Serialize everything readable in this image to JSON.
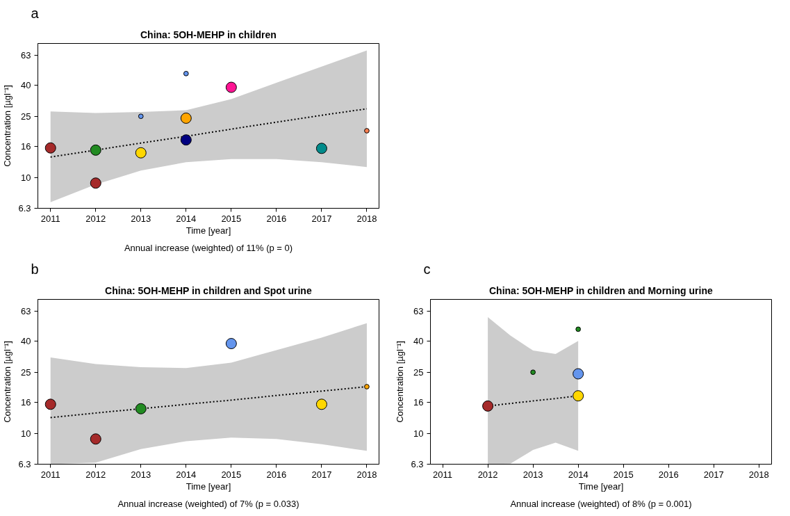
{
  "chart_data": [
    {
      "type": "bubble",
      "title": "China: 5OH-MEHP in children",
      "xlabel": "Time [year]",
      "ylabel": "Concentration [µgl⁻¹]",
      "annotations": [
        "a",
        "Annual increase (weighted) of 11% (p = 0)"
      ],
      "xlim": [
        2010.72,
        2018.27
      ],
      "xticks": [
        2011,
        2012,
        2013,
        2014,
        2015,
        2016,
        2017,
        2018
      ],
      "ylim": [
        6.3,
        75
      ],
      "yticks": [
        6.3,
        10,
        16,
        25,
        40,
        63
      ],
      "log": "y",
      "marker": "circle",
      "series": [
        {
          "x": [
            2011,
            2012,
            2012,
            2013,
            2013,
            2014,
            2014,
            2014,
            2015,
            2017,
            2018
          ],
          "values": [
            15.6,
            15.1,
            9.2,
            14.5,
            25.1,
            47.7,
            24.4,
            17.6,
            38.8,
            15.5,
            20.2
          ],
          "sizes": [
            1,
            1,
            1,
            1,
            0.2,
            0.2,
            1,
            1,
            1,
            1,
            0.2
          ],
          "colors": [
            "#a52a2a",
            "#228b22",
            "#a52a2a",
            "#ffd700",
            "#6495ed",
            "#6495ed",
            "#ffa500",
            "#000080",
            "#ff1493",
            "#008b8b",
            "#ff7f50"
          ]
        },
        {
          "type": "line",
          "x": [
            2011,
            2012,
            2013,
            2014,
            2015,
            2016,
            2017,
            2018
          ],
          "values": [
            13.6,
            15.1,
            16.8,
            18.6,
            20.7,
            23.0,
            25.5,
            28.1
          ],
          "lower": [
            6.9,
            9.0,
            11.1,
            12.6,
            13.2,
            13.2,
            12.6,
            11.7
          ],
          "upper": [
            27,
            26.4,
            26.8,
            27.5,
            32.5,
            41.6,
            53,
            67.5
          ],
          "color": "#000000",
          "line_style": "dotted",
          "marker": "none"
        }
      ]
    },
    {
      "type": "bubble",
      "title": "China: 5OH-MEHP in children and Spot urine",
      "xlabel": "Time [year]",
      "ylabel": "Concentration [µgl⁻¹]",
      "annotations": [
        "b",
        "Annual increase (weighted) of 7% (p = 0.033)"
      ],
      "xlim": [
        2010.72,
        2018.27
      ],
      "xticks": [
        2011,
        2012,
        2013,
        2014,
        2015,
        2016,
        2017,
        2018
      ],
      "ylim": [
        6.3,
        75
      ],
      "yticks": [
        6.3,
        10,
        16,
        25,
        40,
        63
      ],
      "log": "y",
      "marker": "circle",
      "series": [
        {
          "x": [
            2011,
            2012,
            2013,
            2015,
            2017,
            2018
          ],
          "values": [
            15.5,
            9.2,
            14.5,
            38.6,
            15.5,
            20.2
          ],
          "sizes": [
            1,
            1,
            1,
            1,
            1,
            0.2
          ],
          "colors": [
            "#a52a2a",
            "#a52a2a",
            "#228b22",
            "#6495ed",
            "#ffd700",
            "#ffa500"
          ]
        },
        {
          "type": "line",
          "x": [
            2011,
            2012,
            2013,
            2014,
            2015,
            2016,
            2017,
            2018
          ],
          "values": [
            12.7,
            13.6,
            14.5,
            15.5,
            16.5,
            17.7,
            18.9,
            20.2
          ],
          "lower": [
            6.3,
            6.45,
            7.9,
            8.9,
            9.4,
            9.2,
            8.5,
            7.7
          ],
          "upper": [
            31.3,
            28.4,
            27.1,
            26.7,
            29.0,
            35.0,
            42.2,
            52.5
          ],
          "color": "#000000",
          "line_style": "dotted",
          "marker": "none"
        }
      ]
    },
    {
      "type": "bubble",
      "title": "China: 5OH-MEHP in children and Morning urine",
      "xlabel": "Time [year]",
      "ylabel": "Concentration [µgl⁻¹]",
      "annotations": [
        "c",
        "Annual increase (weighted) of 8% (p = 0.001)"
      ],
      "xlim": [
        2010.73,
        2018.28
      ],
      "xticks": [
        2011,
        2012,
        2013,
        2014,
        2015,
        2016,
        2017,
        2018
      ],
      "ylim": [
        6.3,
        75
      ],
      "yticks": [
        6.3,
        10,
        16,
        25,
        40,
        63
      ],
      "log": "y",
      "marker": "circle",
      "series": [
        {
          "x": [
            2012,
            2013,
            2014,
            2014,
            2014
          ],
          "values": [
            15.1,
            25.1,
            47.9,
            24.5,
            17.6
          ],
          "sizes": [
            1,
            0.2,
            0.2,
            1,
            1
          ],
          "colors": [
            "#a52a2a",
            "#228b22",
            "#228b22",
            "#6495ed",
            "#ffd700"
          ]
        },
        {
          "type": "line",
          "x": [
            2012,
            2012.5,
            2013,
            2013.5,
            2014
          ],
          "values": [
            15.1,
            15.7,
            16.3,
            16.9,
            17.6
          ],
          "lower": [
            6.3,
            6.35,
            7.8,
            8.7,
            7.7
          ],
          "upper": [
            57.5,
            43.6,
            34.8,
            33,
            40.2
          ],
          "color": "#000000",
          "line_style": "dotted",
          "marker": "none"
        }
      ]
    }
  ]
}
